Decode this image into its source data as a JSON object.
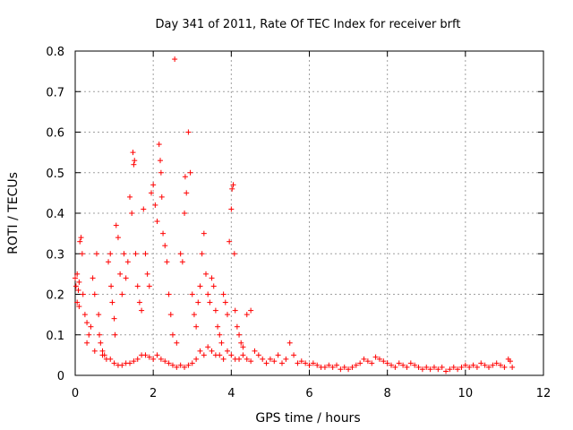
{
  "chart_data": {
    "type": "scatter",
    "title": "Day 341 of 2011, Rate Of TEC Index for receiver brft",
    "xlabel": "GPS time / hours",
    "ylabel": "ROTI / TECUs",
    "xlim": [
      0,
      12
    ],
    "ylim": [
      0,
      0.8
    ],
    "x_ticks": [
      0,
      2,
      4,
      6,
      8,
      10,
      12
    ],
    "x_tick_labels": [
      "0",
      "2",
      "4",
      "6",
      "8",
      "10",
      "12"
    ],
    "y_ticks": [
      0,
      0.1,
      0.2,
      0.3,
      0.4,
      0.5,
      0.6,
      0.7,
      0.8
    ],
    "y_tick_labels": [
      "0",
      "0.1",
      "0.2",
      "0.3",
      "0.4",
      "0.5",
      "0.6",
      "0.7",
      "0.8"
    ],
    "grid": true,
    "marker": "+",
    "marker_color": "#ff0000",
    "series": [
      {
        "name": "ROTI",
        "points": [
          [
            0.0,
            0.24
          ],
          [
            0.02,
            0.22
          ],
          [
            0.05,
            0.25
          ],
          [
            0.08,
            0.21
          ],
          [
            0.1,
            0.23
          ],
          [
            0.12,
            0.33
          ],
          [
            0.15,
            0.34
          ],
          [
            0.18,
            0.3
          ],
          [
            0.05,
            0.18
          ],
          [
            0.1,
            0.17
          ],
          [
            0.2,
            0.2
          ],
          [
            0.25,
            0.15
          ],
          [
            0.3,
            0.13
          ],
          [
            0.35,
            0.1
          ],
          [
            0.4,
            0.12
          ],
          [
            0.45,
            0.24
          ],
          [
            0.5,
            0.2
          ],
          [
            0.55,
            0.3
          ],
          [
            0.6,
            0.15
          ],
          [
            0.62,
            0.1
          ],
          [
            0.65,
            0.08
          ],
          [
            0.7,
            0.06
          ],
          [
            0.75,
            0.05
          ],
          [
            0.8,
            0.04
          ],
          [
            0.85,
            0.28
          ],
          [
            0.9,
            0.3
          ],
          [
            0.92,
            0.22
          ],
          [
            0.95,
            0.18
          ],
          [
            1.0,
            0.14
          ],
          [
            1.02,
            0.1
          ],
          [
            1.05,
            0.37
          ],
          [
            1.1,
            0.34
          ],
          [
            1.15,
            0.25
          ],
          [
            1.2,
            0.2
          ],
          [
            1.25,
            0.3
          ],
          [
            1.3,
            0.24
          ],
          [
            1.35,
            0.28
          ],
          [
            1.4,
            0.44
          ],
          [
            1.45,
            0.4
          ],
          [
            1.48,
            0.55
          ],
          [
            1.5,
            0.52
          ],
          [
            1.52,
            0.53
          ],
          [
            1.55,
            0.3
          ],
          [
            1.6,
            0.22
          ],
          [
            1.65,
            0.18
          ],
          [
            1.7,
            0.16
          ],
          [
            1.75,
            0.41
          ],
          [
            1.8,
            0.3
          ],
          [
            1.85,
            0.25
          ],
          [
            1.9,
            0.22
          ],
          [
            1.95,
            0.45
          ],
          [
            2.0,
            0.47
          ],
          [
            2.05,
            0.42
          ],
          [
            2.1,
            0.38
          ],
          [
            2.15,
            0.57
          ],
          [
            2.18,
            0.53
          ],
          [
            2.2,
            0.5
          ],
          [
            2.22,
            0.44
          ],
          [
            2.25,
            0.35
          ],
          [
            2.3,
            0.32
          ],
          [
            2.35,
            0.28
          ],
          [
            2.4,
            0.2
          ],
          [
            2.45,
            0.15
          ],
          [
            2.5,
            0.1
          ],
          [
            2.55,
            0.78
          ],
          [
            2.6,
            0.08
          ],
          [
            2.7,
            0.3
          ],
          [
            2.75,
            0.28
          ],
          [
            2.8,
            0.4
          ],
          [
            2.82,
            0.49
          ],
          [
            2.85,
            0.45
          ],
          [
            2.9,
            0.6
          ],
          [
            2.95,
            0.5
          ],
          [
            3.0,
            0.2
          ],
          [
            3.05,
            0.15
          ],
          [
            3.1,
            0.12
          ],
          [
            3.15,
            0.18
          ],
          [
            3.2,
            0.22
          ],
          [
            3.25,
            0.3
          ],
          [
            3.3,
            0.35
          ],
          [
            3.35,
            0.25
          ],
          [
            3.4,
            0.2
          ],
          [
            3.45,
            0.18
          ],
          [
            3.5,
            0.24
          ],
          [
            3.55,
            0.22
          ],
          [
            3.6,
            0.16
          ],
          [
            3.65,
            0.12
          ],
          [
            3.7,
            0.1
          ],
          [
            3.75,
            0.08
          ],
          [
            3.8,
            0.2
          ],
          [
            3.85,
            0.18
          ],
          [
            3.9,
            0.15
          ],
          [
            3.95,
            0.33
          ],
          [
            4.0,
            0.41
          ],
          [
            4.02,
            0.46
          ],
          [
            4.05,
            0.47
          ],
          [
            4.08,
            0.3
          ],
          [
            4.1,
            0.16
          ],
          [
            4.15,
            0.12
          ],
          [
            4.2,
            0.1
          ],
          [
            4.25,
            0.08
          ],
          [
            4.3,
            0.07
          ],
          [
            4.4,
            0.15
          ],
          [
            4.5,
            0.16
          ],
          [
            0.3,
            0.08
          ],
          [
            0.5,
            0.06
          ],
          [
            0.7,
            0.05
          ],
          [
            0.9,
            0.04
          ],
          [
            1.0,
            0.03
          ],
          [
            1.1,
            0.025
          ],
          [
            1.2,
            0.025
          ],
          [
            1.3,
            0.03
          ],
          [
            1.4,
            0.03
          ],
          [
            1.5,
            0.035
          ],
          [
            1.6,
            0.04
          ],
          [
            1.7,
            0.05
          ],
          [
            1.8,
            0.05
          ],
          [
            1.9,
            0.045
          ],
          [
            2.0,
            0.04
          ],
          [
            2.1,
            0.05
          ],
          [
            2.2,
            0.04
          ],
          [
            2.3,
            0.035
          ],
          [
            2.4,
            0.03
          ],
          [
            2.5,
            0.025
          ],
          [
            2.6,
            0.02
          ],
          [
            2.7,
            0.025
          ],
          [
            2.8,
            0.02
          ],
          [
            2.9,
            0.025
          ],
          [
            3.0,
            0.03
          ],
          [
            3.1,
            0.04
          ],
          [
            3.2,
            0.06
          ],
          [
            3.3,
            0.05
          ],
          [
            3.4,
            0.07
          ],
          [
            3.5,
            0.06
          ],
          [
            3.6,
            0.05
          ],
          [
            3.7,
            0.05
          ],
          [
            3.8,
            0.04
          ],
          [
            3.9,
            0.06
          ],
          [
            4.0,
            0.05
          ],
          [
            4.1,
            0.04
          ],
          [
            4.2,
            0.04
          ],
          [
            4.3,
            0.05
          ],
          [
            4.4,
            0.04
          ],
          [
            4.5,
            0.035
          ],
          [
            4.6,
            0.06
          ],
          [
            4.7,
            0.05
          ],
          [
            4.8,
            0.04
          ],
          [
            4.9,
            0.03
          ],
          [
            5.0,
            0.04
          ],
          [
            5.1,
            0.035
          ],
          [
            5.2,
            0.05
          ],
          [
            5.3,
            0.03
          ],
          [
            5.4,
            0.04
          ],
          [
            5.5,
            0.08
          ],
          [
            5.6,
            0.05
          ],
          [
            5.7,
            0.03
          ],
          [
            5.8,
            0.035
          ],
          [
            5.9,
            0.03
          ],
          [
            6.0,
            0.025
          ],
          [
            6.1,
            0.03
          ],
          [
            6.2,
            0.025
          ],
          [
            6.3,
            0.02
          ],
          [
            6.4,
            0.02
          ],
          [
            6.5,
            0.025
          ],
          [
            6.6,
            0.02
          ],
          [
            6.7,
            0.025
          ],
          [
            6.8,
            0.015
          ],
          [
            6.9,
            0.02
          ],
          [
            7.0,
            0.015
          ],
          [
            7.1,
            0.02
          ],
          [
            7.2,
            0.025
          ],
          [
            7.3,
            0.03
          ],
          [
            7.4,
            0.04
          ],
          [
            7.5,
            0.035
          ],
          [
            7.6,
            0.03
          ],
          [
            7.7,
            0.045
          ],
          [
            7.8,
            0.04
          ],
          [
            7.9,
            0.035
          ],
          [
            8.0,
            0.03
          ],
          [
            8.1,
            0.025
          ],
          [
            8.2,
            0.02
          ],
          [
            8.3,
            0.03
          ],
          [
            8.4,
            0.025
          ],
          [
            8.5,
            0.02
          ],
          [
            8.6,
            0.03
          ],
          [
            8.7,
            0.025
          ],
          [
            8.8,
            0.02
          ],
          [
            8.9,
            0.015
          ],
          [
            9.0,
            0.02
          ],
          [
            9.1,
            0.015
          ],
          [
            9.2,
            0.02
          ],
          [
            9.3,
            0.015
          ],
          [
            9.4,
            0.02
          ],
          [
            9.5,
            0.01
          ],
          [
            9.6,
            0.015
          ],
          [
            9.7,
            0.02
          ],
          [
            9.8,
            0.015
          ],
          [
            9.9,
            0.02
          ],
          [
            10.0,
            0.025
          ],
          [
            10.1,
            0.02
          ],
          [
            10.2,
            0.025
          ],
          [
            10.3,
            0.02
          ],
          [
            10.4,
            0.03
          ],
          [
            10.5,
            0.025
          ],
          [
            10.6,
            0.02
          ],
          [
            10.7,
            0.025
          ],
          [
            10.8,
            0.03
          ],
          [
            10.9,
            0.025
          ],
          [
            11.0,
            0.02
          ],
          [
            11.1,
            0.04
          ],
          [
            11.15,
            0.035
          ],
          [
            11.2,
            0.02
          ]
        ]
      }
    ]
  }
}
